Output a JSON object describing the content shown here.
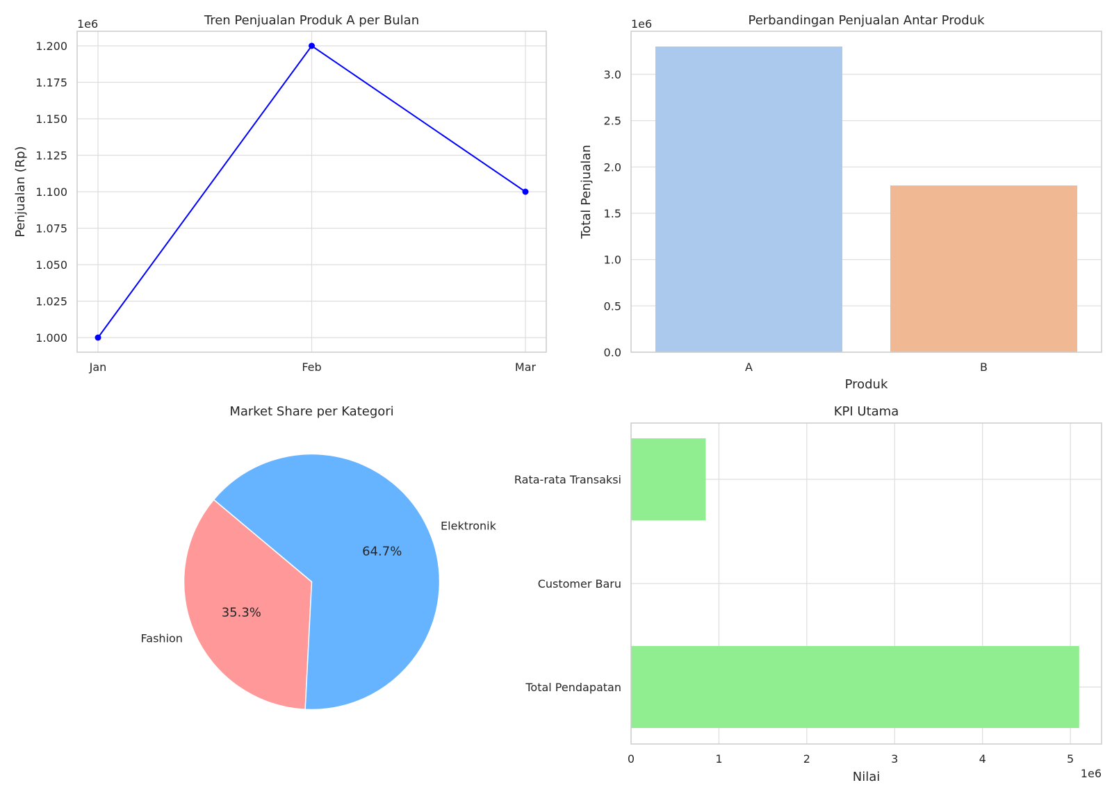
{
  "chart_data": [
    {
      "type": "line",
      "title": "Tren Penjualan Produk A per Bulan",
      "xlabel": "",
      "ylabel": "Penjualan (Rp)",
      "categories": [
        "Jan",
        "Feb",
        "Mar"
      ],
      "values": [
        1000000,
        1200000,
        1100000
      ],
      "ylim": [
        990000,
        1210000
      ],
      "yticks": [
        1.0,
        1.025,
        1.05,
        1.075,
        1.1,
        1.125,
        1.15,
        1.175,
        1.2
      ],
      "ytick_labels": [
        "1.000",
        "1.025",
        "1.050",
        "1.075",
        "1.100",
        "1.125",
        "1.150",
        "1.175",
        "1.200"
      ],
      "offset_label": "1e6",
      "color": "#0000ff",
      "grid": true
    },
    {
      "type": "bar",
      "title": "Perbandingan Penjualan Antar Produk",
      "xlabel": "Produk",
      "ylabel": "Total Penjualan",
      "categories": [
        "A",
        "B"
      ],
      "values": [
        3300000,
        1800000
      ],
      "colors": [
        "#abc9ed",
        "#f0b994"
      ],
      "ylim": [
        0,
        3465000
      ],
      "yticks": [
        0,
        0.5,
        1.0,
        1.5,
        2.0,
        2.5,
        3.0
      ],
      "ytick_labels": [
        "0.0",
        "0.5",
        "1.0",
        "1.5",
        "2.0",
        "2.5",
        "3.0"
      ],
      "offset_label": "1e6",
      "grid": true
    },
    {
      "type": "pie",
      "title": "Market Share per Kategori",
      "labels": [
        "Fashion",
        "Elektronik"
      ],
      "values": [
        35.3,
        64.7
      ],
      "pct_labels": [
        "35.3%",
        "64.7%"
      ],
      "colors": [
        "#ff9999",
        "#66b3ff"
      ],
      "startangle": 140
    },
    {
      "type": "bar",
      "orientation": "horizontal",
      "title": "KPI Utama",
      "xlabel": "Nilai",
      "ylabel": "",
      "categories": [
        "Total Pendapatan",
        "Customer Baru",
        "Rata-rata Transaksi"
      ],
      "values": [
        5100000,
        0,
        850000
      ],
      "color": "#90ee90",
      "xlim": [
        0,
        5355000
      ],
      "xticks": [
        0,
        1,
        2,
        3,
        4,
        5
      ],
      "xtick_labels": [
        "0",
        "1",
        "2",
        "3",
        "4",
        "5"
      ],
      "offset_label": "1e6",
      "grid": true
    }
  ]
}
